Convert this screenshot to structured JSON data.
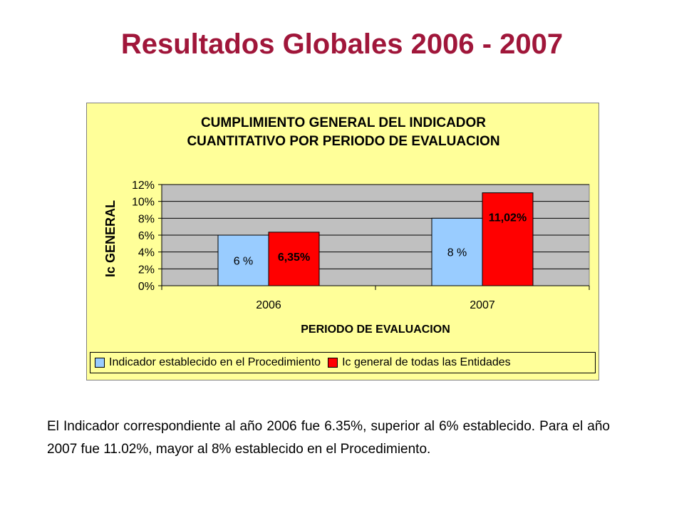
{
  "slide": {
    "title": "Resultados Globales 2006 - 2007",
    "caption": "El Indicador correspondiente al año 2006 fue 6.35%, superior al 6% establecido. Para el año 2007 fue 11.02%, mayor al 8% establecido en el Procedimiento."
  },
  "chart_data": {
    "type": "bar",
    "title_line1": "CUMPLIMIENTO GENERAL DEL INDICADOR",
    "title_line2": "CUANTITATIVO POR PERIODO DE EVALUACION",
    "xlabel": "PERIODO DE EVALUACION",
    "ylabel": "Ic GENERAL",
    "categories": [
      "2006",
      "2007"
    ],
    "ylim": [
      0,
      12
    ],
    "yticks": [
      0,
      2,
      4,
      6,
      8,
      10,
      12
    ],
    "ytick_labels": [
      "0%",
      "2%",
      "4%",
      "6%",
      "8%",
      "10%",
      "12%"
    ],
    "grid": true,
    "legend_position": "bottom",
    "series": [
      {
        "name": "Indicador establecido en el Procedimiento",
        "values": [
          6,
          8
        ],
        "labels": [
          "6 %",
          "8 %"
        ],
        "color": "#99CCFF"
      },
      {
        "name": "Ic general de todas las Entidades",
        "values": [
          6.35,
          11.02
        ],
        "labels": [
          "6,35%",
          "11,02%"
        ],
        "color": "#FF0000"
      }
    ],
    "plot_background": "#C0C0C0",
    "chart_background": "#FFFF99"
  }
}
